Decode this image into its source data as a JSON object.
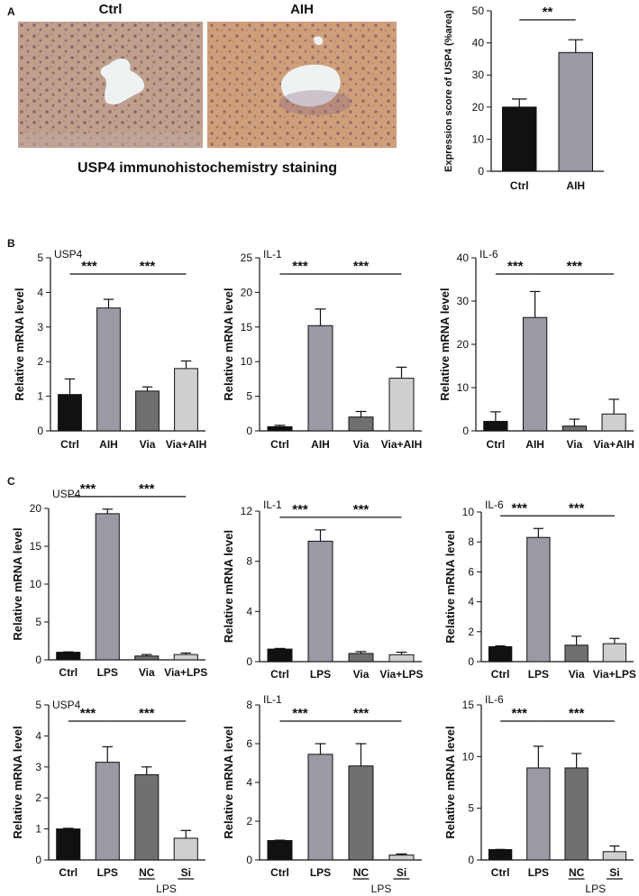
{
  "panels": {
    "a": "A",
    "b": "B",
    "c": "C"
  },
  "ihc": {
    "title_ctrl": "Ctrl",
    "title_aih": "AIH",
    "caption": "USP4  immunohistochemistry staining"
  },
  "colors": {
    "black": "#111111",
    "gray": "#9a9aa5",
    "darkgray": "#707070",
    "lightgray": "#cfcfcf"
  },
  "chart_data": [
    {
      "id": "A",
      "type": "bar",
      "title": "",
      "ylabel": "Expression score of USP4 (%area)",
      "categories": [
        "Ctrl",
        "AIH"
      ],
      "values": [
        20,
        37
      ],
      "errors": [
        2.5,
        4
      ],
      "colors": [
        "#111111",
        "#9a9aa5"
      ],
      "ylim": [
        0,
        50
      ],
      "yticks": [
        0,
        10,
        20,
        30,
        40,
        50
      ],
      "significance": [
        {
          "from": 0,
          "to": 1,
          "label": "**"
        }
      ]
    },
    {
      "id": "B1",
      "type": "bar",
      "title": "USP4",
      "ylabel": "Relative mRNA level",
      "categories": [
        "Ctrl",
        "AIH",
        "Via",
        "Via+AIH"
      ],
      "values": [
        1.05,
        3.55,
        1.15,
        1.8
      ],
      "errors": [
        0.45,
        0.25,
        0.12,
        0.22
      ],
      "colors": [
        "#111111",
        "#9a9aa5",
        "#707070",
        "#cfcfcf"
      ],
      "ylim": [
        0,
        5
      ],
      "yticks": [
        0,
        1,
        2,
        3,
        4,
        5
      ],
      "significance": [
        {
          "from": 0,
          "to": 1,
          "label": "***"
        },
        {
          "from": 1,
          "to": 3,
          "label": "***"
        }
      ]
    },
    {
      "id": "B2",
      "type": "bar",
      "title": "IL-1",
      "ylabel": "Relative mRNA level",
      "categories": [
        "Ctrl",
        "AIH",
        "Via",
        "Via+AIH"
      ],
      "values": [
        0.6,
        15.2,
        2.0,
        7.6
      ],
      "errors": [
        0.2,
        2.4,
        0.8,
        1.6
      ],
      "colors": [
        "#111111",
        "#9a9aa5",
        "#707070",
        "#cfcfcf"
      ],
      "ylim": [
        0,
        25
      ],
      "yticks": [
        0,
        5,
        10,
        15,
        20,
        25
      ],
      "significance": [
        {
          "from": 0,
          "to": 1,
          "label": "***"
        },
        {
          "from": 1,
          "to": 3,
          "label": "***"
        }
      ]
    },
    {
      "id": "B3",
      "type": "bar",
      "title": "IL-6",
      "ylabel": "Relative mRNA level",
      "categories": [
        "Ctrl",
        "AIH",
        "Via",
        "Via+AIH"
      ],
      "values": [
        2.2,
        26.2,
        1.1,
        3.9
      ],
      "errors": [
        2.2,
        6.0,
        1.6,
        3.4
      ],
      "colors": [
        "#111111",
        "#9a9aa5",
        "#707070",
        "#cfcfcf"
      ],
      "ylim": [
        0,
        40
      ],
      "yticks": [
        0,
        10,
        20,
        30,
        40
      ],
      "significance": [
        {
          "from": 0,
          "to": 1,
          "label": "***"
        },
        {
          "from": 1,
          "to": 3,
          "label": "***"
        }
      ]
    },
    {
      "id": "C1",
      "type": "bar",
      "title": "USP4",
      "ylabel": "Relative mRNA level",
      "categories": [
        "Ctrl",
        "LPS",
        "Via",
        "Via+LPS"
      ],
      "values": [
        1.0,
        19.3,
        0.5,
        0.7
      ],
      "errors": [
        0.05,
        0.6,
        0.2,
        0.2
      ],
      "colors": [
        "#111111",
        "#9a9aa5",
        "#707070",
        "#cfcfcf"
      ],
      "ylim": [
        0,
        20
      ],
      "yticks": [
        0,
        5,
        10,
        15,
        20
      ],
      "significance": [
        {
          "from": 0,
          "to": 1,
          "label": "***"
        },
        {
          "from": 1,
          "to": 3,
          "label": "***"
        }
      ]
    },
    {
      "id": "C2",
      "type": "bar",
      "title": "IL-1",
      "ylabel": "Relative mRNA level",
      "categories": [
        "Ctrl",
        "LPS",
        "Via",
        "Via+LPS"
      ],
      "values": [
        1.0,
        9.6,
        0.65,
        0.55
      ],
      "errors": [
        0.05,
        0.9,
        0.15,
        0.2
      ],
      "colors": [
        "#111111",
        "#9a9aa5",
        "#707070",
        "#cfcfcf"
      ],
      "ylim": [
        0,
        12
      ],
      "yticks": [
        0,
        4,
        8,
        12
      ],
      "significance": [
        {
          "from": 0,
          "to": 1,
          "label": "***"
        },
        {
          "from": 1,
          "to": 3,
          "label": "***"
        }
      ]
    },
    {
      "id": "C3",
      "type": "bar",
      "title": "IL-6",
      "ylabel": "Relative mRNA level",
      "categories": [
        "Ctrl",
        "LPS",
        "Via",
        "Via+LPS"
      ],
      "values": [
        1.0,
        8.3,
        1.1,
        1.2
      ],
      "errors": [
        0.05,
        0.6,
        0.6,
        0.35
      ],
      "colors": [
        "#111111",
        "#9a9aa5",
        "#707070",
        "#cfcfcf"
      ],
      "ylim": [
        0,
        10
      ],
      "yticks": [
        0,
        2,
        4,
        6,
        8,
        10
      ],
      "significance": [
        {
          "from": 0,
          "to": 1,
          "label": "***"
        },
        {
          "from": 1,
          "to": 3,
          "label": "***"
        }
      ]
    },
    {
      "id": "D1",
      "type": "bar",
      "title": "USP4",
      "ylabel": "Relative mRNA level",
      "categories": [
        "Ctrl",
        "LPS",
        "NC",
        "Si"
      ],
      "underlined": [
        2,
        3
      ],
      "group_label": "LPS",
      "values": [
        1.0,
        3.15,
        2.75,
        0.7
      ],
      "errors": [
        0.02,
        0.5,
        0.25,
        0.25
      ],
      "colors": [
        "#111111",
        "#9a9aa5",
        "#707070",
        "#cfcfcf"
      ],
      "ylim": [
        0,
        5
      ],
      "yticks": [
        0,
        1,
        2,
        3,
        4,
        5
      ],
      "significance": [
        {
          "from": 0,
          "to": 1,
          "label": "***"
        },
        {
          "from": 1,
          "to": 3,
          "label": "***"
        }
      ]
    },
    {
      "id": "D2",
      "type": "bar",
      "title": "IL-1",
      "ylabel": "Relative mRNA level",
      "categories": [
        "Ctrl",
        "LPS",
        "NC",
        "Si"
      ],
      "underlined": [
        2,
        3
      ],
      "group_label": "LPS",
      "values": [
        1.0,
        5.45,
        4.85,
        0.25
      ],
      "errors": [
        0.02,
        0.55,
        1.15,
        0.06
      ],
      "colors": [
        "#111111",
        "#9a9aa5",
        "#707070",
        "#cfcfcf"
      ],
      "ylim": [
        0,
        8
      ],
      "yticks": [
        0,
        2,
        4,
        6,
        8
      ],
      "significance": [
        {
          "from": 0,
          "to": 1,
          "label": "***"
        },
        {
          "from": 1,
          "to": 3,
          "label": "***"
        }
      ]
    },
    {
      "id": "D3",
      "type": "bar",
      "title": "IL-6",
      "ylabel": "Relative mRNA level",
      "categories": [
        "Ctrl",
        "LPS",
        "NC",
        "Si"
      ],
      "underlined": [
        2,
        3
      ],
      "group_label": "LPS",
      "values": [
        1.0,
        8.9,
        8.9,
        0.8
      ],
      "errors": [
        0.02,
        2.1,
        1.4,
        0.55
      ],
      "colors": [
        "#111111",
        "#9a9aa5",
        "#707070",
        "#cfcfcf"
      ],
      "ylim": [
        0,
        15
      ],
      "yticks": [
        0,
        5,
        10,
        15
      ],
      "significance": [
        {
          "from": 0,
          "to": 1,
          "label": "***"
        },
        {
          "from": 1,
          "to": 3,
          "label": "***"
        }
      ]
    }
  ]
}
